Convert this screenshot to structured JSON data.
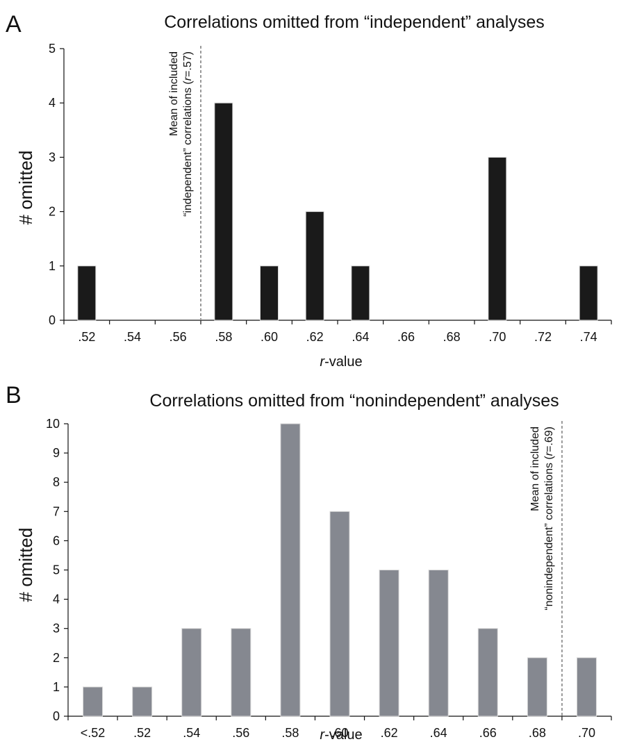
{
  "chart_data": [
    {
      "panel": "A",
      "type": "bar",
      "title": "Correlations omitted from “independent” analyses",
      "xlabel_italic": "r",
      "xlabel_rest": "-value",
      "ylabel": "# omitted",
      "ylim": [
        0,
        5
      ],
      "yticks": [
        0,
        1,
        2,
        3,
        4,
        5
      ],
      "categories": [
        ".52",
        ".54",
        ".56",
        ".58",
        ".60",
        ".62",
        ".64",
        ".66",
        ".68",
        ".70",
        ".72",
        ".74"
      ],
      "values": [
        1,
        0,
        0,
        4,
        1,
        2,
        1,
        0,
        0,
        3,
        0,
        1
      ],
      "bar_color": "#1a1a1a",
      "reference_line": {
        "value": 0.57,
        "color": "#999999",
        "annotation_line1": "Mean of included",
        "annotation_line2_pre": "“independent” correlations (",
        "annotation_line2_italic": "r",
        "annotation_line2_post": "=.57)"
      }
    },
    {
      "panel": "B",
      "type": "bar",
      "title": "Correlations omitted from “nonindependent” analyses",
      "xlabel_italic": "r",
      "xlabel_rest": "-value",
      "ylabel": "# omitted",
      "ylim": [
        0,
        10
      ],
      "yticks": [
        0,
        1,
        2,
        3,
        4,
        5,
        6,
        7,
        8,
        9,
        10
      ],
      "categories": [
        "<.52",
        ".52",
        ".54",
        ".56",
        ".58",
        ".60",
        ".62",
        ".64",
        ".66",
        ".68",
        ".70"
      ],
      "values": [
        1,
        1,
        3,
        3,
        10,
        7,
        5,
        5,
        3,
        2,
        2
      ],
      "bar_color": "#858890",
      "reference_line": {
        "value": 0.69,
        "color": "#999999",
        "annotation_line1": "Mean of included",
        "annotation_line2_pre": "“nonindependent” correlations (",
        "annotation_line2_italic": "r",
        "annotation_line2_post": "=.69)"
      }
    }
  ]
}
